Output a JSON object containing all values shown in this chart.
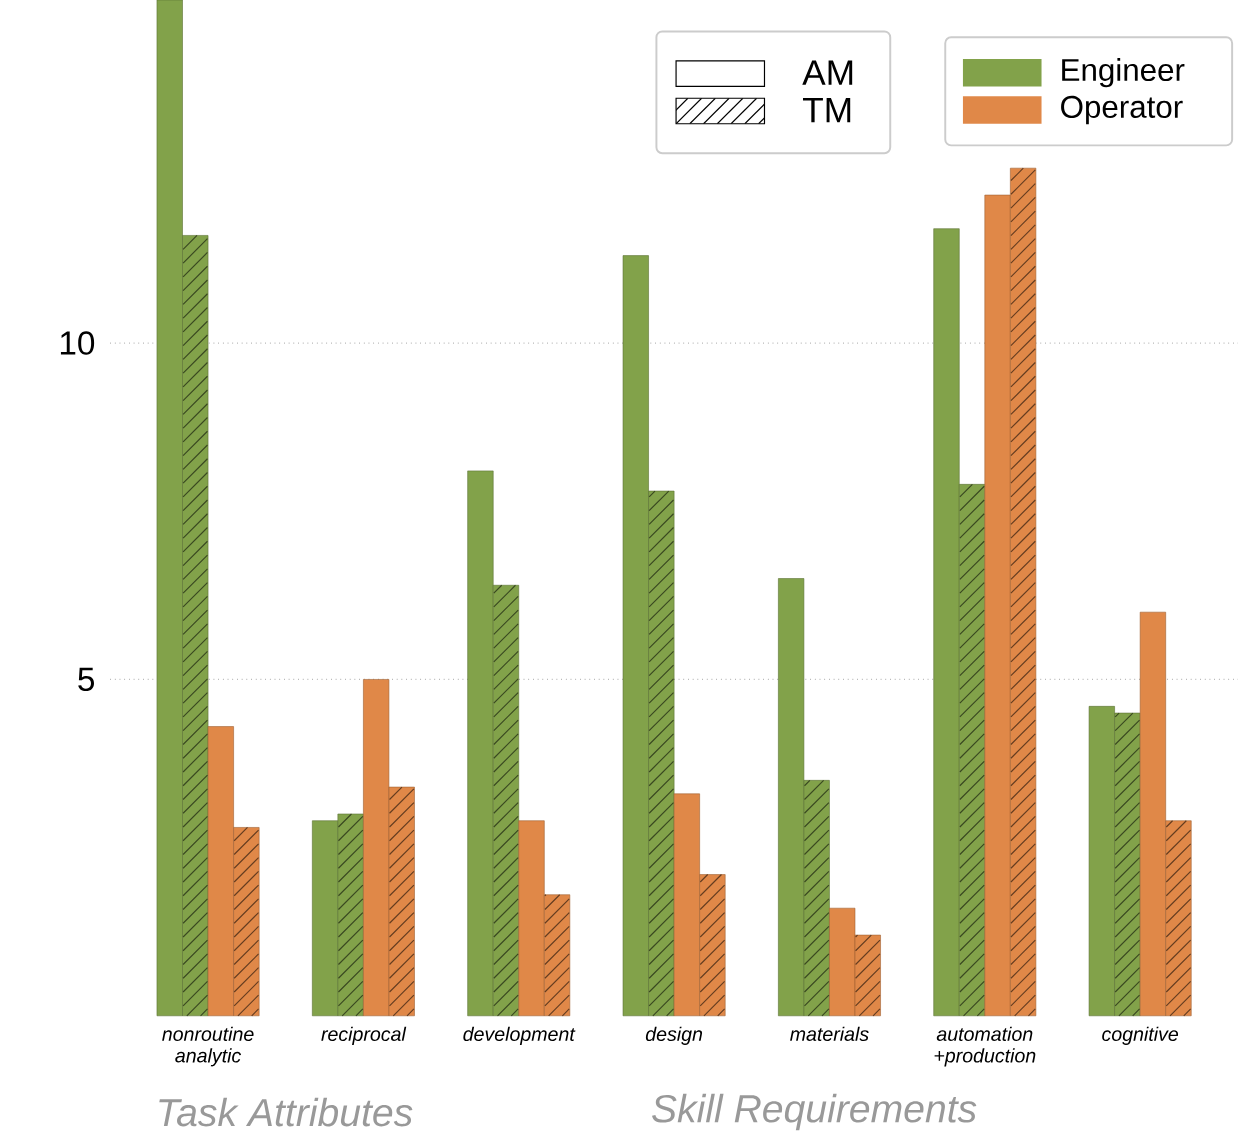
{
  "chart_data": {
    "type": "bar",
    "categories": [
      "nonroutine analytic",
      "reciprocal",
      "development",
      "design",
      "materials",
      "automation +production",
      "cognitive"
    ],
    "series": [
      {
        "name": "Engineer",
        "color": "#82a24a",
        "values": [
          15.1,
          2.9,
          8.1,
          11.3,
          6.5,
          11.7,
          4.6
        ]
      },
      {
        "color": "#82a24a",
        "values": [
          11.6,
          3.0,
          6.4,
          7.8,
          3.5,
          7.9,
          4.5
        ]
      },
      {
        "name": "Operator",
        "color": "#e08848",
        "values": [
          4.3,
          5.0,
          2.9,
          3.3,
          1.6,
          12.2,
          6.0
        ]
      },
      {
        "color": "#e08848",
        "values": [
          2.8,
          3.4,
          1.8,
          2.1,
          1.2,
          12.6,
          2.9
        ]
      }
    ],
    "ylim": [
      0,
      15.1
    ],
    "yticks": [
      5,
      10
    ],
    "grid": "y",
    "legend": "top right",
    "annotations": [
      "AM",
      "TM",
      "Task Attributes",
      "Skill Requirements"
    ]
  }
}
